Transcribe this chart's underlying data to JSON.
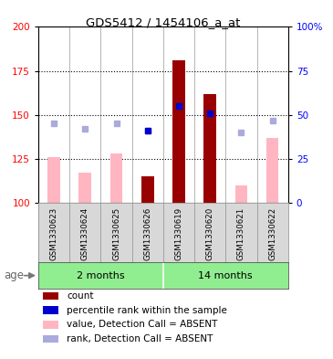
{
  "title": "GDS5412 / 1454106_a_at",
  "samples": [
    "GSM1330623",
    "GSM1330624",
    "GSM1330625",
    "GSM1330626",
    "GSM1330619",
    "GSM1330620",
    "GSM1330621",
    "GSM1330622"
  ],
  "ylim_left": [
    100,
    200
  ],
  "yticks_left": [
    100,
    125,
    150,
    175,
    200
  ],
  "ytick_labels_right": [
    "0",
    "25",
    "50",
    "75",
    "100%"
  ],
  "bar_color_dark_red": "#990000",
  "bar_color_pink": "#FFB6C1",
  "dot_color_blue": "#0000CC",
  "dot_color_lightblue": "#AAAADD",
  "count_values": [
    null,
    null,
    null,
    115,
    181,
    162,
    null,
    null
  ],
  "value_absent": [
    126,
    117,
    128,
    null,
    null,
    null,
    110,
    137
  ],
  "rank_absent": [
    145,
    142,
    145,
    141,
    null,
    null,
    140,
    147
  ],
  "percentile_rank": [
    null,
    null,
    null,
    141,
    155,
    151,
    null,
    null
  ],
  "legend_items": [
    {
      "color": "#990000",
      "label": "count"
    },
    {
      "color": "#0000CC",
      "label": "percentile rank within the sample"
    },
    {
      "color": "#FFB6C1",
      "label": "value, Detection Call = ABSENT"
    },
    {
      "color": "#AAAADD",
      "label": "rank, Detection Call = ABSENT"
    }
  ],
  "gray_bg": "#d8d8d8",
  "green_light": "#90EE90",
  "green_dark": "#44CC44",
  "white": "#ffffff"
}
